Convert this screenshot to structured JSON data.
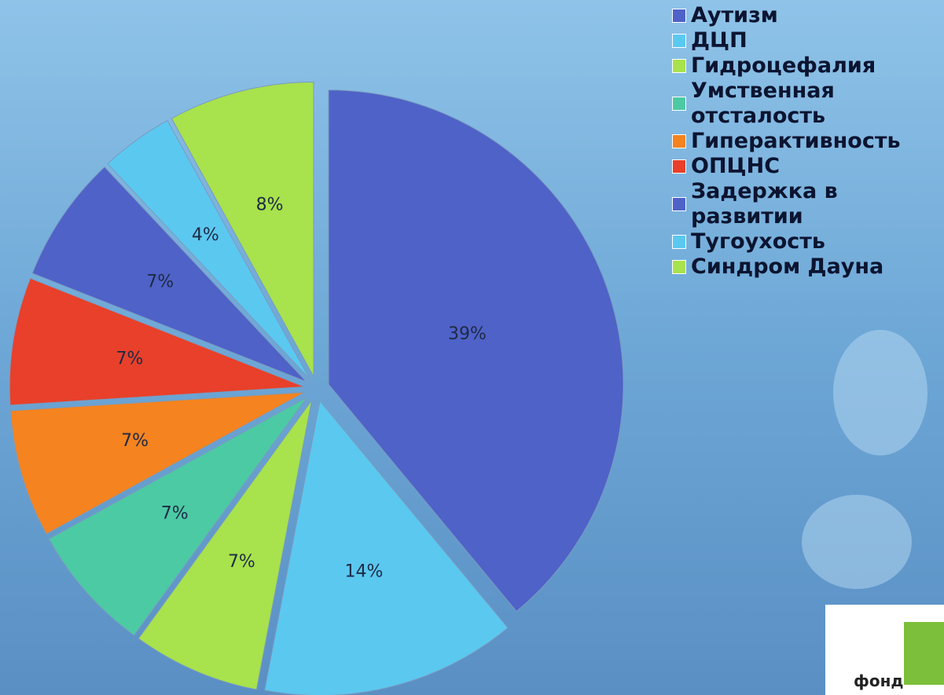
{
  "chart_data": {
    "type": "pie",
    "categories": [
      "Аутизм",
      "ДЦП",
      "Гидроцефалия",
      "Умственная отсталость",
      "Гиперактивность",
      "ОПЦНС",
      "Задержка в развитии",
      "Тугоухость",
      "Синдром Дауна"
    ],
    "values": [
      39,
      14,
      7,
      7,
      7,
      7,
      7,
      4,
      8
    ],
    "value_labels": [
      "39%",
      "14%",
      "7%",
      "7%",
      "7%",
      "7%",
      "7%",
      "4%",
      "8%"
    ],
    "colors": [
      "#4f62c8",
      "#5bc8f0",
      "#a8e24c",
      "#4ccaa4",
      "#f5831f",
      "#e8402a",
      "#4f62c8",
      "#5bc8f0",
      "#a8e24c"
    ],
    "legend": "right"
  },
  "logo_text": "фонд"
}
